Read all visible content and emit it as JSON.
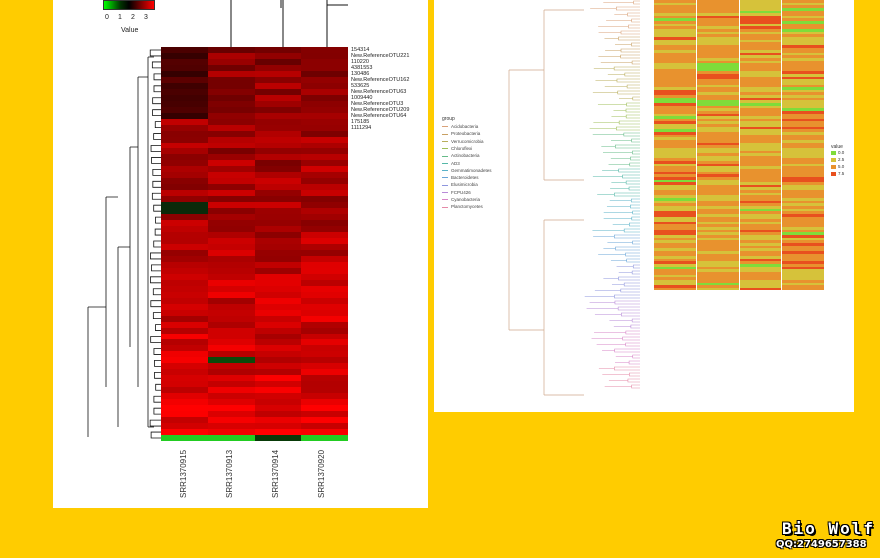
{
  "left_heatmap": {
    "color_key": {
      "ticks": [
        "0",
        "1",
        "2",
        "3"
      ],
      "title": "Value",
      "colors": {
        "low": "#00ff00",
        "mid": "#000000",
        "high": "#ff0000"
      }
    },
    "columns": [
      "SRR1370915",
      "SRR1370913",
      "SRR1370914",
      "SRR1370920"
    ],
    "row_labels": [
      "154314",
      "New.ReferenceOTU221",
      "110220",
      "4381553",
      "130486",
      "New.ReferenceOTU162",
      "533625",
      "New.ReferenceOTU63",
      "1009440",
      "New.ReferenceOTU3",
      "New.ReferenceOTU209",
      "New.ReferenceOTU64",
      "175185",
      "1111294"
    ]
  },
  "right_heatmap": {
    "group_legend_title": "group",
    "groups": [
      {
        "name": "Acidobacteria",
        "color": "#d9a27a"
      },
      {
        "name": "Proteobacteria",
        "color": "#c8a063"
      },
      {
        "name": "Verrucomicrobia",
        "color": "#b9ae5c"
      },
      {
        "name": "Chloroflexi",
        "color": "#9fbf5a"
      },
      {
        "name": "Actinobacteria",
        "color": "#66bb88"
      },
      {
        "name": "AD3",
        "color": "#55b8a8"
      },
      {
        "name": "Gemmatimonadetes",
        "color": "#5ab2c8"
      },
      {
        "name": "Bacteroidetes",
        "color": "#6aa6d8"
      },
      {
        "name": "Elusimicrobia",
        "color": "#8e96de"
      },
      {
        "name": "FCPU426",
        "color": "#b88ad8"
      },
      {
        "name": "Cyanobacteria",
        "color": "#d886c8"
      },
      {
        "name": "Planctomycetes",
        "color": "#e58aa8"
      }
    ],
    "value_legend_title": "value",
    "value_ticks": [
      "0.0",
      "2.5",
      "5.0",
      "7.5"
    ],
    "value_colors": [
      "#7fdc3a",
      "#d6c23a",
      "#e8922e",
      "#e8501e"
    ]
  },
  "branding": {
    "name": "Bio Wolf",
    "qq": "QQ:2749657388"
  }
}
